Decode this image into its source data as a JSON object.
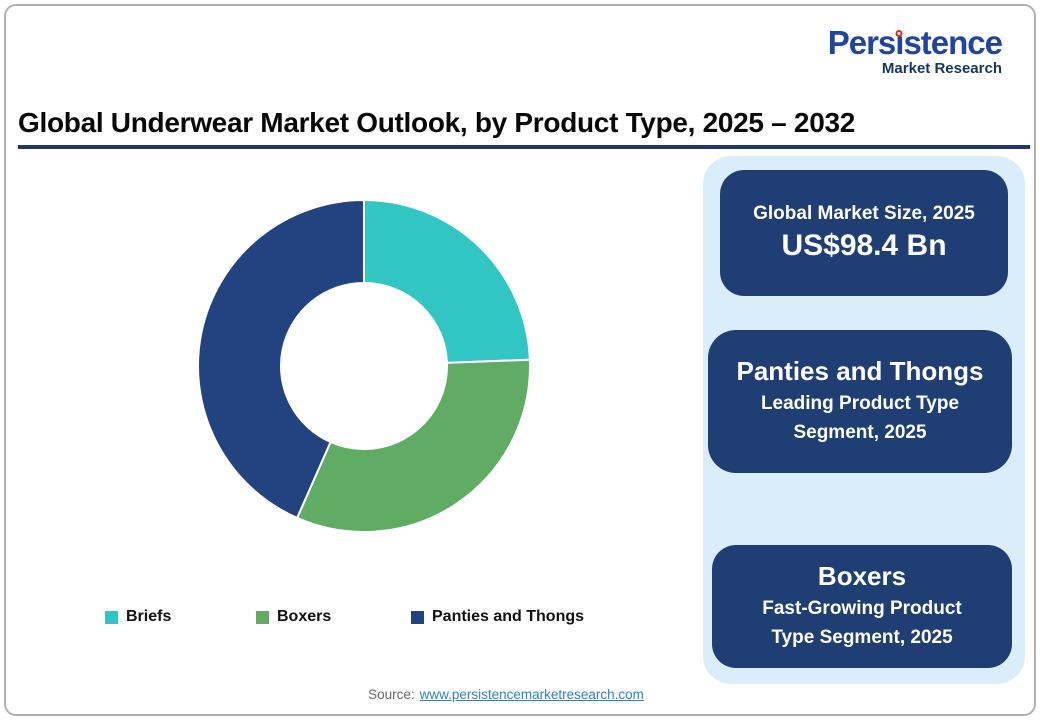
{
  "logo": {
    "brand_pre": "Pers",
    "brand_i": "ı",
    "brand_post": "stence",
    "brand_color": "#21459C",
    "dot_color": "#E02B20",
    "tagline": "Market Research",
    "tagline_color": "#17365D"
  },
  "header": {
    "title": "Global Underwear Market Outlook, by Product Type, 2025 – 2032",
    "underline_color": "#1F3864"
  },
  "chart_data": {
    "type": "pie",
    "variant": "donut",
    "title": "Global Underwear Market Outlook, by Product Type, 2025 – 2032",
    "categories": [
      "Briefs",
      "Boxers",
      "Panties and Thongs"
    ],
    "values": [
      24.4,
      32.2,
      43.4
    ],
    "unit": "%",
    "colors": [
      "#31C6C3",
      "#60AC64",
      "#234380"
    ],
    "start_angle_deg": 0,
    "direction": "clockwise",
    "inner_radius_ratio": 0.5,
    "legend_position": "bottom"
  },
  "sidebar": {
    "bg_color": "#D9EDFA",
    "card_color": "#1F3E74",
    "cards": [
      {
        "title": "Global Market Size, 2025",
        "value": "US$98.4 Bn"
      },
      {
        "title": "Panties and Thongs",
        "subtitle": "Leading Product Type Segment, 2025"
      },
      {
        "title": "Boxers",
        "subtitle": "Fast-Growing Product Type Segment, 2025"
      }
    ]
  },
  "footer": {
    "source_label": "Source:",
    "source_link": "www.persistencemarketresearch.com",
    "link_color": "#2E84C6"
  }
}
